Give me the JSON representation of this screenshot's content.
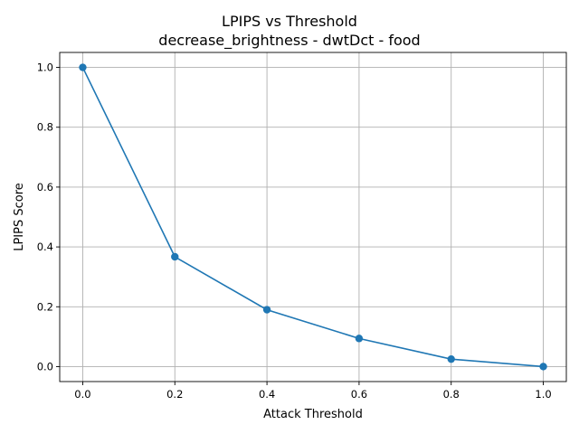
{
  "chart_data": {
    "type": "line",
    "title": "LPIPS vs Threshold",
    "subtitle": "decrease_brightness - dwtDct - food",
    "xlabel": "Attack Threshold",
    "ylabel": "LPIPS Score",
    "x": [
      0.0,
      0.2,
      0.4,
      0.6,
      0.8,
      1.0
    ],
    "series": [
      {
        "values": [
          1.0,
          0.367,
          0.19,
          0.094,
          0.025,
          0.0
        ]
      }
    ],
    "xlim": [
      -0.05,
      1.05
    ],
    "ylim": [
      -0.05,
      1.05
    ],
    "xticks": [
      "0.0",
      "0.2",
      "0.4",
      "0.6",
      "0.8",
      "1.0"
    ],
    "yticks": [
      "0.0",
      "0.2",
      "0.4",
      "0.6",
      "0.8",
      "1.0"
    ],
    "grid": true,
    "line_color": "#1f77b4",
    "marker": "circle"
  }
}
